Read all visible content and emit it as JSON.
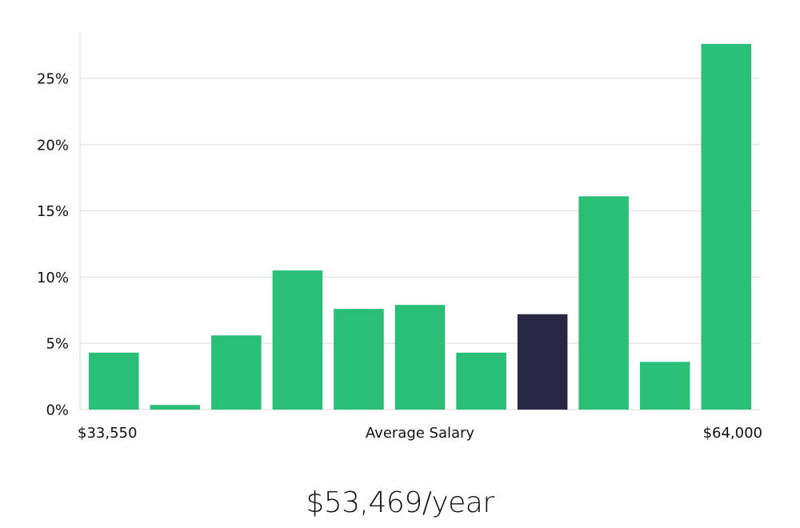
{
  "chart_data": {
    "type": "bar",
    "x_axis": {
      "min_label": "$33,550",
      "center_label": "Average Salary",
      "max_label": "$64,000"
    },
    "y_axis": {
      "ticks": [
        0,
        5,
        10,
        15,
        20,
        25
      ],
      "tick_labels": [
        "0%",
        "5%",
        "10%",
        "15%",
        "20%",
        "25%"
      ],
      "ylim": [
        0,
        28.5
      ],
      "unit": "%"
    },
    "grid": "horizontal",
    "legend": "none",
    "values": [
      4.3,
      0.35,
      5.6,
      10.5,
      7.6,
      7.9,
      4.3,
      7.2,
      16.1,
      3.6,
      27.6
    ],
    "highlight_index": 7,
    "colors": {
      "bar": "#2abf77",
      "highlight": "#282645",
      "grid": "#dddddd",
      "axis": "#d6d6d6"
    }
  },
  "salary": {
    "display": "$53,469/year"
  }
}
